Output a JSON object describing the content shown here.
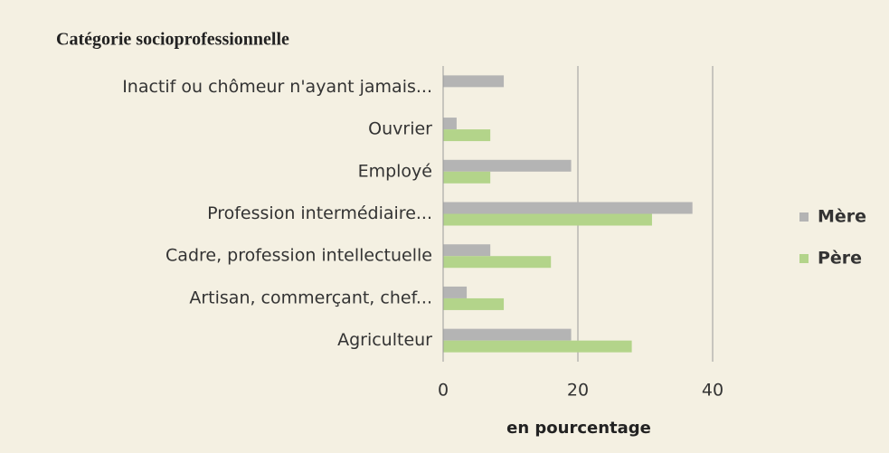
{
  "chart_data": {
    "type": "hbar",
    "title": "Catégorie socioprofessionnelle",
    "categories": [
      "Inactif ou chômeur n'ayant jamais...",
      "Ouvrier",
      "Employé",
      "Profession intermédiaire...",
      "Cadre, profession intellectuelle",
      "Artisan, commerçant, chef...",
      "Agriculteur"
    ],
    "series": [
      {
        "name": "Mère",
        "color": "#b4b4b4",
        "values": [
          9,
          2,
          19,
          37,
          7,
          3.5,
          19
        ]
      },
      {
        "name": "Père",
        "color": "#b3d48a",
        "values": [
          0,
          7,
          7,
          31,
          16,
          9,
          28
        ]
      }
    ],
    "xlabel": "en pourcentage",
    "xlim": [
      0,
      40
    ],
    "xticks": [
      0,
      20,
      40
    ],
    "grid": true,
    "legend": "right"
  }
}
